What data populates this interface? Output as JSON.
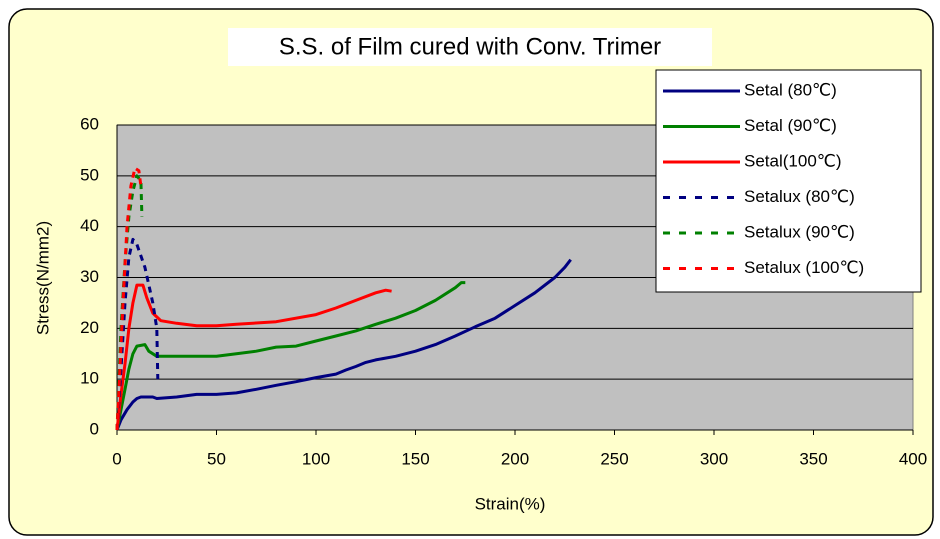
{
  "chart_data": {
    "type": "line",
    "title": "S.S. of Film cured with Conv. Trimer",
    "x_label": "Strain(%)",
    "y_label": "Stress(N/mm2)",
    "xlim": [
      0,
      400
    ],
    "xticks": [
      0,
      50,
      100,
      150,
      200,
      250,
      300,
      350,
      400
    ],
    "ylim": [
      0,
      60
    ],
    "yticks": [
      0,
      10,
      20,
      30,
      40,
      50,
      60
    ],
    "grid": true,
    "legend": "upper right",
    "series": [
      {
        "name": "Setal (80℃)",
        "color": "#000080",
        "dashed": false,
        "x": [
          0,
          2,
          5,
          8,
          10,
          12,
          18,
          20,
          30,
          40,
          50,
          60,
          70,
          80,
          90,
          100,
          110,
          115,
          120,
          125,
          130,
          140,
          150,
          160,
          170,
          180,
          190,
          200,
          210,
          220,
          225,
          228
        ],
        "values": [
          0,
          2,
          4,
          5.5,
          6.2,
          6.5,
          6.5,
          6.2,
          6.5,
          7,
          7,
          7.3,
          8,
          8.8,
          9.5,
          10.3,
          11,
          11.8,
          12.5,
          13.3,
          13.8,
          14.5,
          15.5,
          16.8,
          18.5,
          20.3,
          22,
          24.5,
          27,
          30,
          32,
          33.5
        ]
      },
      {
        "name": "Setal (90℃)",
        "color": "#008000",
        "dashed": false,
        "x": [
          0,
          2,
          4,
          6,
          8,
          10,
          14,
          16,
          20,
          30,
          50,
          60,
          70,
          80,
          90,
          100,
          110,
          120,
          130,
          140,
          150,
          160,
          170,
          173,
          175
        ],
        "values": [
          0,
          4,
          8,
          12,
          15,
          16.5,
          16.8,
          15.5,
          14.5,
          14.5,
          14.5,
          15,
          15.5,
          16.3,
          16.5,
          17.5,
          18.5,
          19.5,
          20.8,
          22,
          23.5,
          25.5,
          28,
          29,
          29
        ]
      },
      {
        "name": "Setal(100℃)",
        "color": "#ff0000",
        "dashed": false,
        "x": [
          0,
          2,
          4,
          6,
          8,
          10,
          13,
          15,
          18,
          22,
          30,
          40,
          50,
          60,
          80,
          100,
          110,
          120,
          130,
          135,
          138
        ],
        "values": [
          0,
          7,
          13,
          20,
          25,
          28.5,
          28.5,
          26,
          23,
          21.5,
          21,
          20.5,
          20.5,
          20.8,
          21.3,
          22.7,
          24,
          25.5,
          27,
          27.5,
          27.3
        ]
      },
      {
        "name": "Setalux (80℃)",
        "color": "#000080",
        "dashed": true,
        "x": [
          0,
          2,
          4,
          6,
          8,
          10,
          14,
          18,
          20,
          20.5
        ],
        "values": [
          0,
          12,
          25,
          34,
          37.5,
          36.5,
          32,
          25,
          20,
          10
        ]
      },
      {
        "name": "Setalux (90℃)",
        "color": "#008000",
        "dashed": true,
        "x": [
          0,
          2,
          4,
          6,
          8,
          10,
          12,
          12.5
        ],
        "values": [
          0,
          20,
          33,
          42,
          47,
          50,
          49,
          42
        ]
      },
      {
        "name": "Setalux (100℃)",
        "color": "#ff0000",
        "dashed": true,
        "x": [
          0,
          1,
          3,
          5,
          7,
          9,
          11,
          12
        ],
        "values": [
          0,
          8,
          25,
          40,
          48,
          51.5,
          51,
          48
        ]
      }
    ]
  }
}
